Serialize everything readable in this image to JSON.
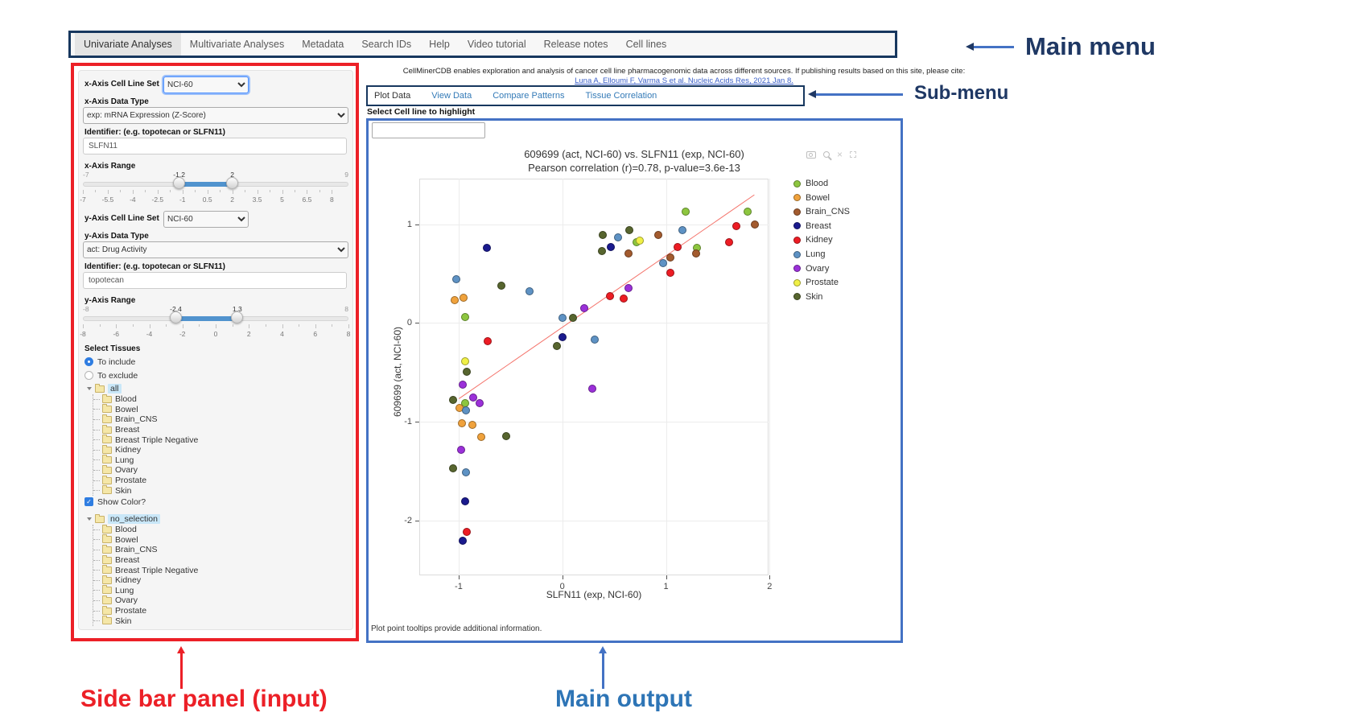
{
  "annotations": {
    "main_menu": "Main menu",
    "sub_menu": "Sub-menu",
    "side_bar": "Side bar panel (input)",
    "main_output": "Main output"
  },
  "main_menu": {
    "items": [
      "Univariate Analyses",
      "Multivariate Analyses",
      "Metadata",
      "Search IDs",
      "Help",
      "Video tutorial",
      "Release notes",
      "Cell lines"
    ],
    "active": "Univariate Analyses"
  },
  "header": {
    "info": "CellMinerCDB enables exploration and analysis of cancer cell line pharmacogenomic data across different sources. If publishing results based on this site, please cite:",
    "citation": "Luna A, Elloumi F, Varma S et al. Nucleic Acids Res, 2021 Jan 8."
  },
  "sub_menu": {
    "tabs": [
      "Plot Data",
      "View Data",
      "Compare Patterns",
      "Tissue Correlation"
    ],
    "active": "Plot Data"
  },
  "sidebar": {
    "x_axis": {
      "cell_line_set_label": "x-Axis Cell Line Set",
      "cell_line_set_value": "NCI-60",
      "data_type_label": "x-Axis Data Type",
      "data_type_value": "exp: mRNA Expression (Z-Score)",
      "identifier_label": "Identifier: (e.g. topotecan or SLFN11)",
      "identifier_value": "SLFN11",
      "range_label": "x-Axis Range",
      "range": {
        "min": -7,
        "max": 9,
        "from": -1.2,
        "to": 2,
        "from_label": "-1.2",
        "to_label": "2",
        "min_label": "-7",
        "max_label": "9",
        "ticks": [
          "-7",
          "-5.5",
          "-4",
          "-2.5",
          "-1",
          "0.5",
          "2",
          "3.5",
          "5",
          "6.5",
          "8"
        ]
      }
    },
    "y_axis": {
      "cell_line_set_label": "y-Axis Cell Line Set",
      "cell_line_set_value": "NCI-60",
      "data_type_label": "y-Axis Data Type",
      "data_type_value": "act: Drug Activity",
      "identifier_label": "Identifier: (e.g. topotecan or SLFN11)",
      "identifier_value": "topotecan",
      "range_label": "y-Axis Range",
      "range": {
        "min": -8,
        "max": 8,
        "from": -2.4,
        "to": 1.3,
        "from_label": "-2.4",
        "to_label": "1.3",
        "min_label": "-8",
        "max_label": "8",
        "ticks": [
          "-8",
          "-6",
          "-4",
          "-2",
          "0",
          "2",
          "4",
          "6",
          "8"
        ]
      }
    },
    "select_tissues": {
      "label": "Select Tissues",
      "options": [
        "To include",
        "To exclude"
      ],
      "selected": "To include",
      "tree_root": "all",
      "tissues": [
        "Blood",
        "Bowel",
        "Brain_CNS",
        "Breast",
        "Breast Triple Negative",
        "Kidney",
        "Lung",
        "Ovary",
        "Prostate",
        "Skin"
      ]
    },
    "show_color": {
      "label": "Show Color?",
      "checked": true,
      "tree_root": "no_selection"
    }
  },
  "main": {
    "highlight_label": "Select Cell line to highlight",
    "highlight_value": "",
    "footer": "Plot point tooltips provide additional information.",
    "toolbar_icons": [
      "camera",
      "zoom-in",
      "close",
      "frame"
    ]
  },
  "chart_data": {
    "type": "scatter",
    "title": "609699 (act, NCI-60) vs. SLFN11 (exp, NCI-60)",
    "subtitle": "Pearson correlation (r)=0.78, p-value=3.6e-13",
    "xlabel": "SLFN11 (exp, NCI-60)",
    "ylabel": "609699 (act, NCI-60)",
    "xlim": [
      -1.38,
      1.99
    ],
    "ylim": [
      -2.55,
      1.46
    ],
    "xticks": [
      -1,
      0,
      1,
      2
    ],
    "yticks": [
      -2,
      -1,
      0,
      1
    ],
    "grid": true,
    "legend_position": "right",
    "tissue_colors": {
      "Blood": "#8dc63f",
      "Bowel": "#f0a23c",
      "Brain_CNS": "#a35b2e",
      "Breast": "#1a1a8e",
      "Kidney": "#ed1c24",
      "Lung": "#5e92c4",
      "Ovary": "#9b30d9",
      "Prostate": "#f0f046",
      "Skin": "#57652e"
    },
    "legend": [
      "Blood",
      "Bowel",
      "Brain_CNS",
      "Breast",
      "Kidney",
      "Lung",
      "Ovary",
      "Prostate",
      "Skin"
    ],
    "regression_line": {
      "x1": -1.0,
      "y1": -0.76,
      "x2": 1.85,
      "y2": 1.3,
      "color": "#f4736b"
    },
    "points": [
      [
        -0.73,
        0.76,
        "Breast"
      ],
      [
        -1.02,
        0.44,
        "Lung"
      ],
      [
        -0.59,
        0.38,
        "Skin"
      ],
      [
        -0.32,
        0.32,
        "Lung"
      ],
      [
        -1.04,
        0.23,
        "Bowel"
      ],
      [
        -0.95,
        0.26,
        "Bowel"
      ],
      [
        -0.94,
        0.06,
        "Blood"
      ],
      [
        -0.72,
        -0.18,
        "Kidney"
      ],
      [
        0.0,
        0.05,
        "Lung"
      ],
      [
        0.1,
        0.05,
        "Skin"
      ],
      [
        0.21,
        0.15,
        "Ovary"
      ],
      [
        0.0,
        -0.14,
        "Breast"
      ],
      [
        -0.05,
        -0.23,
        "Skin"
      ],
      [
        0.31,
        -0.17,
        "Lung"
      ],
      [
        0.46,
        0.27,
        "Kidney"
      ],
      [
        0.59,
        0.25,
        "Kidney"
      ],
      [
        0.64,
        0.35,
        "Ovary"
      ],
      [
        0.39,
        0.89,
        "Skin"
      ],
      [
        0.38,
        0.73,
        "Skin"
      ],
      [
        0.47,
        0.77,
        "Breast"
      ],
      [
        0.54,
        0.87,
        "Lung"
      ],
      [
        0.65,
        0.94,
        "Skin"
      ],
      [
        0.64,
        0.7,
        "Brain_CNS"
      ],
      [
        0.72,
        0.82,
        "Blood"
      ],
      [
        0.75,
        0.83,
        "Prostate"
      ],
      [
        0.93,
        0.89,
        "Brain_CNS"
      ],
      [
        0.97,
        0.61,
        "Lung"
      ],
      [
        1.04,
        0.66,
        "Brain_CNS"
      ],
      [
        1.04,
        0.51,
        "Kidney"
      ],
      [
        1.11,
        0.77,
        "Kidney"
      ],
      [
        1.19,
        1.13,
        "Blood"
      ],
      [
        1.16,
        0.94,
        "Lung"
      ],
      [
        1.3,
        0.76,
        "Blood"
      ],
      [
        1.29,
        0.7,
        "Brain_CNS"
      ],
      [
        1.61,
        0.82,
        "Kidney"
      ],
      [
        1.68,
        0.98,
        "Kidney"
      ],
      [
        1.79,
        1.13,
        "Blood"
      ],
      [
        1.86,
        1.0,
        "Brain_CNS"
      ],
      [
        -0.94,
        -0.39,
        "Prostate"
      ],
      [
        -0.92,
        -0.49,
        "Skin"
      ],
      [
        -0.96,
        -0.62,
        "Ovary"
      ],
      [
        0.29,
        -0.66,
        "Ovary"
      ],
      [
        -1.05,
        -0.78,
        "Skin"
      ],
      [
        -0.86,
        -0.75,
        "Ovary"
      ],
      [
        -0.94,
        -0.81,
        "Blood"
      ],
      [
        -0.8,
        -0.81,
        "Ovary"
      ],
      [
        -0.99,
        -0.86,
        "Bowel"
      ],
      [
        -0.93,
        -0.88,
        "Lung"
      ],
      [
        -0.97,
        -1.01,
        "Bowel"
      ],
      [
        -0.87,
        -1.03,
        "Bowel"
      ],
      [
        -0.78,
        -1.15,
        "Bowel"
      ],
      [
        -0.54,
        -1.14,
        "Skin"
      ],
      [
        -0.98,
        -1.28,
        "Ovary"
      ],
      [
        -1.05,
        -1.47,
        "Skin"
      ],
      [
        -0.93,
        -1.51,
        "Lung"
      ],
      [
        -0.94,
        -1.8,
        "Breast"
      ],
      [
        -0.92,
        -2.11,
        "Kidney"
      ],
      [
        -0.96,
        -2.2,
        "Breast"
      ]
    ]
  }
}
